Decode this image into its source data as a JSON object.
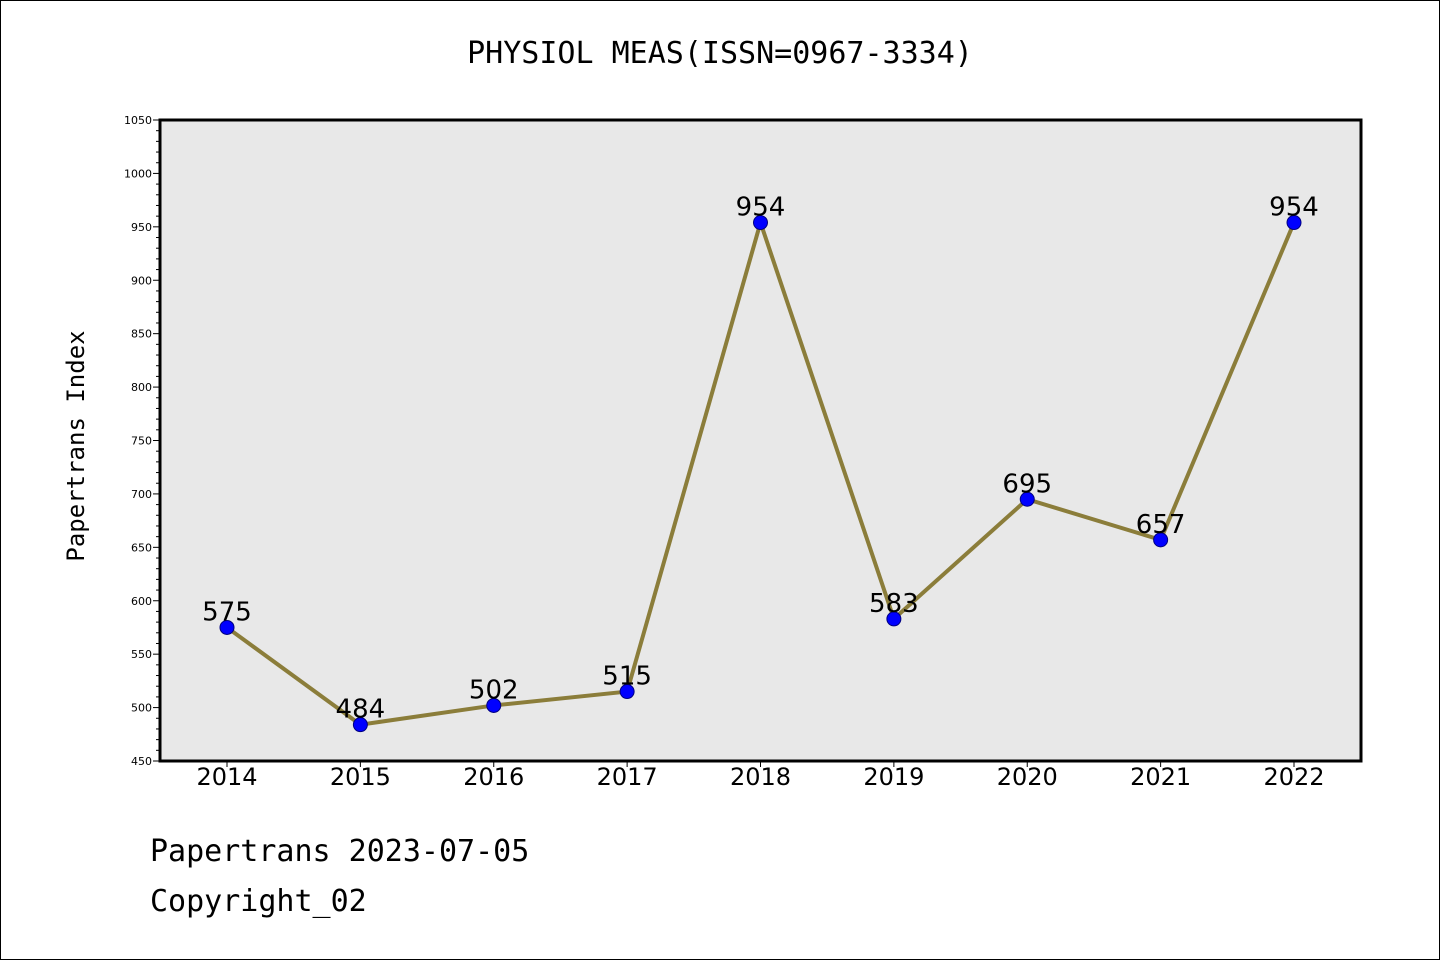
{
  "title": "PHYSIOL MEAS(ISSN=0967-3334)",
  "footer": {
    "date_line": "Papertrans 2023-07-05",
    "copyright_line": "Copyright_02"
  },
  "colors": {
    "plot_background": "#e8e8e8",
    "line": "#8b7d3a",
    "marker_fill": "#0000ff",
    "marker_stroke": "#000080"
  },
  "chart_data": {
    "type": "line",
    "title": "PHYSIOL MEAS(ISSN=0967-3334)",
    "xlabel": "",
    "ylabel": "Papertrans Index",
    "categories": [
      "2014",
      "2015",
      "2016",
      "2017",
      "2018",
      "2019",
      "2020",
      "2021",
      "2022"
    ],
    "series": [
      {
        "values": [
          575,
          484,
          502,
          515,
          954,
          583,
          695,
          657,
          954
        ],
        "labels": [
          "575",
          "484",
          "502",
          "515",
          "954",
          "583",
          "695",
          "657",
          "954"
        ]
      }
    ],
    "ylim": [
      450,
      1050
    ],
    "yticks": [
      450,
      500,
      550,
      600,
      650,
      700,
      750,
      800,
      850,
      900,
      950,
      1000,
      1050
    ],
    "ytick_labels": [
      "450",
      "500",
      "550",
      "600",
      "650",
      "700",
      "750",
      "800",
      "850",
      "900",
      "950",
      "1000",
      "1050"
    ],
    "y_minor_step": 10,
    "grid": false,
    "legend": "none"
  }
}
